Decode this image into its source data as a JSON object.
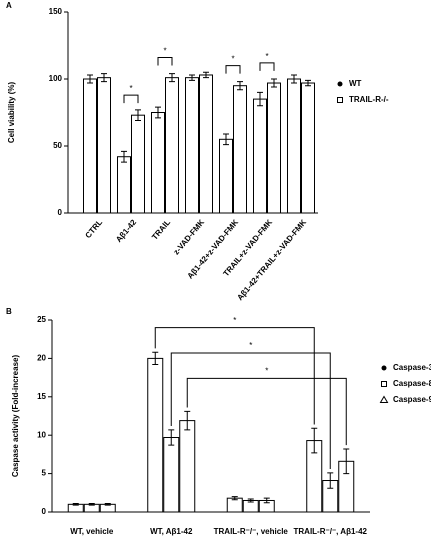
{
  "charts": [
    {
      "chart_data": {
        "type": "bar",
        "panel": "A",
        "ylabel": "Cell viability (%)",
        "categories": [
          "CTRL",
          "Aβ1-42",
          "TRAIL",
          "z-VAD-FMK",
          "Aβ1-42+z-VAD-FMK",
          "TRAIL+z-VAD-FMK",
          "Aβ1-42+TRAIL+z-VAD-FMK"
        ],
        "series": [
          {
            "name": "WT",
            "marker": "circle",
            "color": "#ffffff",
            "values": [
              100,
              42,
              75,
              101,
              55,
              85,
              100
            ],
            "errors": [
              3,
              4,
              4,
              2,
              4,
              5,
              3
            ]
          },
          {
            "name": "TRAIL-R-/-",
            "marker": "square",
            "color": "#ffffff",
            "values": [
              101,
              73,
              101,
              103,
              95,
              97,
              97
            ],
            "errors": [
              3,
              4,
              3,
              2,
              3,
              3,
              2
            ]
          }
        ],
        "annotations": [
          "*",
          "*",
          "*",
          "*"
        ],
        "ylim": [
          0,
          150
        ],
        "yticks": [
          0,
          50,
          100,
          150
        ]
      }
    },
    {
      "chart_data": {
        "type": "bar",
        "panel": "B",
        "ylabel": "Caspase activity (Fold-increase)",
        "categories": [
          "WT, vehicle",
          "WT, Aβ1-42",
          "TRAIL-R⁻/⁻, vehicle",
          "TRAIL-R⁻/⁻, Aβ1-42"
        ],
        "series": [
          {
            "name": "Caspase-3",
            "marker": "circle",
            "color": "#ffffff",
            "values": [
              1,
              20,
              1.8,
              9.3
            ],
            "errors": [
              0.1,
              0.8,
              0.2,
              1.6
            ]
          },
          {
            "name": "Caspase-8",
            "marker": "square",
            "color": "#ffffff",
            "values": [
              1,
              9.7,
              1.5,
              4.1
            ],
            "errors": [
              0.1,
              1,
              0.2,
              1
            ]
          },
          {
            "name": "Caspase-9",
            "marker": "triangle",
            "color": "#ffffff",
            "values": [
              1,
              11.9,
              1.5,
              6.6
            ],
            "errors": [
              0.1,
              1.2,
              0.3,
              1.6
            ]
          }
        ],
        "annotations": [
          "*",
          "*",
          "*"
        ],
        "ylim": [
          0,
          25
        ],
        "yticks": [
          0,
          5,
          10,
          15,
          20,
          25
        ]
      }
    }
  ]
}
